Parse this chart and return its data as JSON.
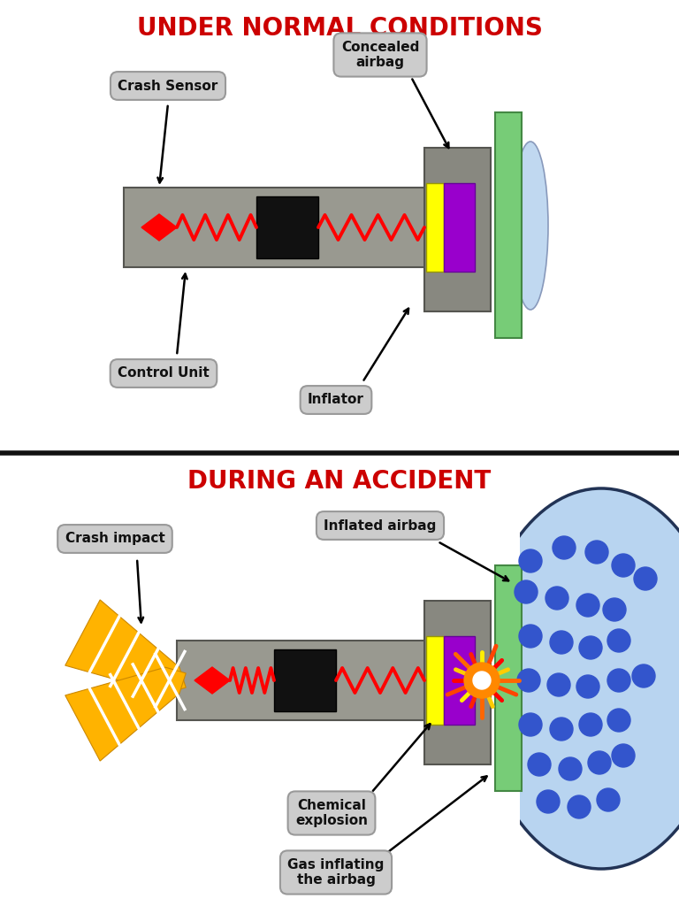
{
  "title_top": "UNDER NORMAL CONDITIONS",
  "title_bottom": "DURING AN ACCIDENT",
  "title_color": "#cc0000",
  "bg_color": "#ffffff",
  "labels_top": {
    "crash_sensor": "Crash Sensor",
    "control_unit": "Control Unit",
    "concealed_airbag": "Concealed\nairbag",
    "inflator": "Inflator"
  },
  "labels_bottom": {
    "crash_impact": "Crash impact",
    "inflated_airbag": "Inflated airbag",
    "chemical_explosion": "Chemical\nexplosion",
    "gas_inflating": "Gas inflating\nthe airbag"
  },
  "gray_bar_color": "#999990",
  "panel_color": "#888880",
  "green_color": "#88cc88",
  "green_bar_color": "#77cc77",
  "airbag_color": "#b8d4f0",
  "label_box_color": "#cccccc",
  "gold_color": "#FFB300"
}
